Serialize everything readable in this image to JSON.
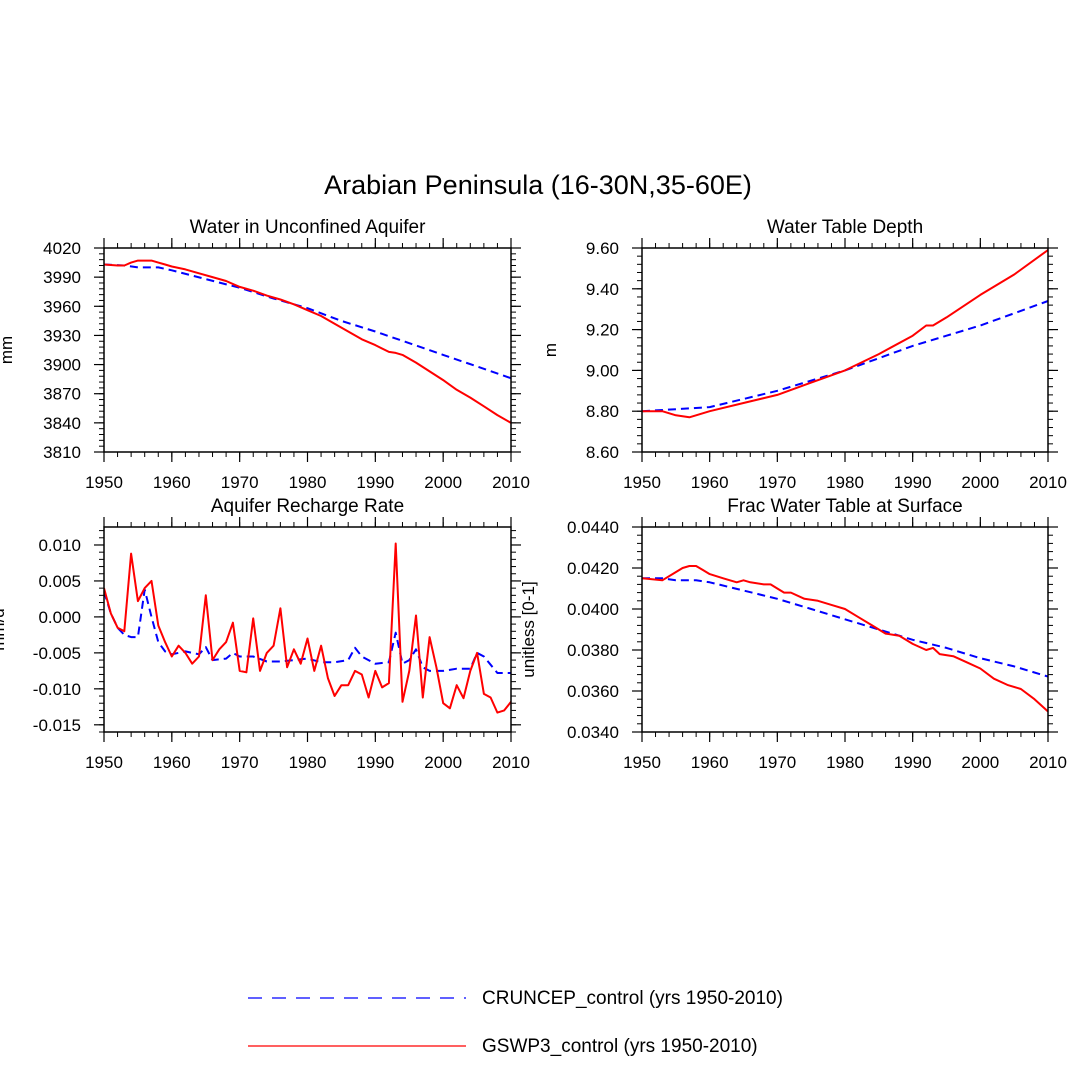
{
  "figure": {
    "title": "Arabian Peninsula (16-30N,35-60E)"
  },
  "legend": {
    "items": [
      {
        "label": "CRUNCEP_control (yrs 1950-2010)",
        "color": "#0000ff",
        "style": "dashed"
      },
      {
        "label": "GSWP3_control (yrs 1950-2010)",
        "color": "#ff0000",
        "style": "solid"
      }
    ]
  },
  "chart_data": [
    {
      "type": "line",
      "title": "Water in Unconfined Aquifer",
      "xlabel": "",
      "ylabel": "mm",
      "xlim": [
        1950,
        2010
      ],
      "ylim": [
        3810,
        4020
      ],
      "xticks": [
        1950,
        1960,
        1970,
        1980,
        1990,
        2000,
        2010
      ],
      "xtick_labels": [
        "1950",
        "1960",
        "1970",
        "1980",
        "1990",
        "2000",
        "2010"
      ],
      "yticks": [
        3810,
        3840,
        3870,
        3900,
        3930,
        3960,
        3990,
        4020
      ],
      "ytick_labels": [
        "3810",
        "3840",
        "3870",
        "3900",
        "3930",
        "3960",
        "3990",
        "4020"
      ],
      "series": [
        {
          "name": "CRUNCEP_control (yrs 1950-2010)",
          "color": "#0000ff",
          "style": "dashed",
          "x": [
            1950,
            1953,
            1955,
            1958,
            1960,
            1965,
            1970,
            1975,
            1980,
            1985,
            1990,
            1995,
            2000,
            2005,
            2010
          ],
          "y": [
            4003,
            4002,
            4000,
            4000,
            3997,
            3988,
            3979,
            3968,
            3958,
            3945,
            3934,
            3922,
            3910,
            3898,
            3886
          ]
        },
        {
          "name": "GSWP3_control (yrs 1950-2010)",
          "color": "#ff0000",
          "style": "solid",
          "x": [
            1950,
            1952,
            1953,
            1954,
            1955,
            1956,
            1957,
            1958,
            1959,
            1960,
            1962,
            1964,
            1966,
            1968,
            1970,
            1972,
            1974,
            1976,
            1978,
            1980,
            1982,
            1984,
            1986,
            1988,
            1990,
            1992,
            1993,
            1994,
            1996,
            1998,
            2000,
            2002,
            2004,
            2006,
            2008,
            2010
          ],
          "y": [
            4003,
            4002,
            4002,
            4005,
            4007,
            4007,
            4007,
            4005,
            4003,
            4001,
            3998,
            3994,
            3990,
            3986,
            3980,
            3976,
            3971,
            3967,
            3962,
            3956,
            3950,
            3942,
            3934,
            3926,
            3920,
            3913,
            3912,
            3910,
            3902,
            3893,
            3884,
            3874,
            3866,
            3857,
            3848,
            3840
          ]
        }
      ]
    },
    {
      "type": "line",
      "title": "Water Table Depth",
      "xlabel": "",
      "ylabel": "m",
      "xlim": [
        1950,
        2010
      ],
      "ylim": [
        8.6,
        9.6
      ],
      "xticks": [
        1950,
        1960,
        1970,
        1980,
        1990,
        2000,
        2010
      ],
      "xtick_labels": [
        "1950",
        "1960",
        "1970",
        "1980",
        "1990",
        "2000",
        "2010"
      ],
      "yticks": [
        8.6,
        8.8,
        9.0,
        9.2,
        9.4,
        9.6
      ],
      "ytick_labels": [
        "8.60",
        "8.80",
        "9.00",
        "9.20",
        "9.40",
        "9.60"
      ],
      "series": [
        {
          "name": "CRUNCEP_control (yrs 1950-2010)",
          "color": "#0000ff",
          "style": "dashed",
          "x": [
            1950,
            1955,
            1960,
            1965,
            1970,
            1975,
            1980,
            1985,
            1990,
            1995,
            2000,
            2005,
            2010
          ],
          "y": [
            8.8,
            8.81,
            8.82,
            8.86,
            8.9,
            8.95,
            9.0,
            9.06,
            9.12,
            9.17,
            9.22,
            9.28,
            9.34
          ]
        },
        {
          "name": "GSWP3_control (yrs 1950-2010)",
          "color": "#ff0000",
          "style": "solid",
          "x": [
            1950,
            1953,
            1955,
            1957,
            1958,
            1960,
            1965,
            1970,
            1975,
            1980,
            1985,
            1990,
            1992,
            1993,
            1995,
            2000,
            2005,
            2010
          ],
          "y": [
            8.8,
            8.8,
            8.78,
            8.77,
            8.78,
            8.8,
            8.84,
            8.88,
            8.94,
            9.0,
            9.08,
            9.17,
            9.22,
            9.22,
            9.26,
            9.37,
            9.47,
            9.59
          ]
        }
      ]
    },
    {
      "type": "line",
      "title": "Aquifer Recharge Rate",
      "xlabel": "",
      "ylabel": "mm/d",
      "xlim": [
        1950,
        2010
      ],
      "ylim": [
        -0.016,
        0.0125
      ],
      "xticks": [
        1950,
        1960,
        1970,
        1980,
        1990,
        2000,
        2010
      ],
      "xtick_labels": [
        "1950",
        "1960",
        "1970",
        "1980",
        "1990",
        "2000",
        "2010"
      ],
      "yticks": [
        -0.015,
        -0.01,
        -0.005,
        0.0,
        0.005,
        0.01
      ],
      "ytick_labels": [
        "-0.015",
        "-0.010",
        "-0.005",
        "0.000",
        "0.005",
        "0.010"
      ],
      "series": [
        {
          "name": "CRUNCEP_control (yrs 1950-2010)",
          "color": "#0000ff",
          "style": "dashed",
          "x": [
            1950,
            1951,
            1952,
            1953,
            1954,
            1955,
            1956,
            1957,
            1958,
            1959,
            1960,
            1962,
            1964,
            1965,
            1966,
            1968,
            1969,
            1970,
            1972,
            1974,
            1976,
            1978,
            1980,
            1982,
            1984,
            1986,
            1987,
            1988,
            1990,
            1992,
            1993,
            1994,
            1995,
            1996,
            1997,
            1998,
            2000,
            2002,
            2004,
            2005,
            2006,
            2008,
            2010
          ],
          "y": [
            0.0035,
            0.0005,
            -0.0015,
            -0.0025,
            -0.0028,
            -0.0028,
            0.0038,
            0.0,
            -0.0035,
            -0.0048,
            -0.0052,
            -0.0048,
            -0.0052,
            -0.0042,
            -0.006,
            -0.0058,
            -0.005,
            -0.0055,
            -0.0055,
            -0.0062,
            -0.0062,
            -0.006,
            -0.0058,
            -0.0063,
            -0.0063,
            -0.006,
            -0.0043,
            -0.0055,
            -0.0065,
            -0.0063,
            -0.0022,
            -0.0065,
            -0.006,
            -0.0045,
            -0.007,
            -0.0075,
            -0.0075,
            -0.0072,
            -0.0072,
            -0.005,
            -0.0055,
            -0.0078,
            -0.0078
          ]
        },
        {
          "name": "GSWP3_control (yrs 1950-2010)",
          "color": "#ff0000",
          "style": "solid",
          "x": [
            1950,
            1951,
            1952,
            1953,
            1954,
            1955,
            1956,
            1957,
            1958,
            1959,
            1960,
            1961,
            1962,
            1963,
            1964,
            1965,
            1966,
            1967,
            1968,
            1969,
            1970,
            1971,
            1972,
            1973,
            1974,
            1975,
            1976,
            1977,
            1978,
            1979,
            1980,
            1981,
            1982,
            1983,
            1984,
            1985,
            1986,
            1987,
            1988,
            1989,
            1990,
            1991,
            1992,
            1993,
            1994,
            1995,
            1996,
            1997,
            1998,
            1999,
            2000,
            2001,
            2002,
            2003,
            2004,
            2005,
            2006,
            2007,
            2008,
            2009,
            2010
          ],
          "y": [
            0.004,
            0.0005,
            -0.0015,
            -0.002,
            0.0088,
            0.0022,
            0.004,
            0.005,
            -0.0012,
            -0.0035,
            -0.0055,
            -0.004,
            -0.005,
            -0.0065,
            -0.0055,
            0.003,
            -0.006,
            -0.0045,
            -0.0035,
            -0.0008,
            -0.0075,
            -0.0077,
            -0.0002,
            -0.0075,
            -0.005,
            -0.004,
            0.0012,
            -0.007,
            -0.0045,
            -0.0065,
            -0.003,
            -0.0075,
            -0.004,
            -0.0085,
            -0.011,
            -0.0095,
            -0.0095,
            -0.0075,
            -0.008,
            -0.0112,
            -0.0075,
            -0.0098,
            -0.0092,
            0.0102,
            -0.0118,
            -0.0075,
            0.0002,
            -0.0112,
            -0.0028,
            -0.007,
            -0.012,
            -0.0127,
            -0.0095,
            -0.0113,
            -0.0075,
            -0.005,
            -0.0107,
            -0.0112,
            -0.0133,
            -0.013,
            -0.0118
          ]
        }
      ]
    },
    {
      "type": "line",
      "title": "Frac Water Table at Surface",
      "xlabel": "",
      "ylabel": "unitless [0-1]",
      "xlim": [
        1950,
        2010
      ],
      "ylim": [
        0.034,
        0.044
      ],
      "xticks": [
        1950,
        1960,
        1970,
        1980,
        1990,
        2000,
        2010
      ],
      "xtick_labels": [
        "1950",
        "1960",
        "1970",
        "1980",
        "1990",
        "2000",
        "2010"
      ],
      "yticks": [
        0.034,
        0.036,
        0.038,
        0.04,
        0.042,
        0.044
      ],
      "ytick_labels": [
        "0.0340",
        "0.0360",
        "0.0380",
        "0.0400",
        "0.0420",
        "0.0440"
      ],
      "series": [
        {
          "name": "CRUNCEP_control (yrs 1950-2010)",
          "color": "#0000ff",
          "style": "dashed",
          "x": [
            1950,
            1953,
            1955,
            1958,
            1960,
            1965,
            1970,
            1975,
            1980,
            1985,
            1990,
            1995,
            2000,
            2005,
            2010
          ],
          "y": [
            0.0415,
            0.0415,
            0.0414,
            0.0414,
            0.0413,
            0.0409,
            0.0405,
            0.04,
            0.0395,
            0.039,
            0.0385,
            0.0381,
            0.0376,
            0.0372,
            0.0367
          ]
        },
        {
          "name": "GSWP3_control (yrs 1950-2010)",
          "color": "#ff0000",
          "style": "solid",
          "x": [
            1950,
            1953,
            1955,
            1956,
            1957,
            1958,
            1959,
            1960,
            1962,
            1964,
            1965,
            1966,
            1968,
            1969,
            1970,
            1971,
            1972,
            1974,
            1976,
            1978,
            1980,
            1982,
            1984,
            1986,
            1988,
            1990,
            1992,
            1993,
            1994,
            1996,
            1998,
            2000,
            2002,
            2004,
            2006,
            2008,
            2010
          ],
          "y": [
            0.0415,
            0.0414,
            0.0418,
            0.042,
            0.0421,
            0.0421,
            0.0419,
            0.0417,
            0.0415,
            0.0413,
            0.0414,
            0.0413,
            0.0412,
            0.0412,
            0.041,
            0.0408,
            0.0408,
            0.0405,
            0.0404,
            0.0402,
            0.04,
            0.0396,
            0.0392,
            0.0388,
            0.0387,
            0.0383,
            0.038,
            0.0381,
            0.0378,
            0.0377,
            0.0374,
            0.0371,
            0.0366,
            0.0363,
            0.0361,
            0.0356,
            0.035
          ]
        }
      ]
    }
  ]
}
